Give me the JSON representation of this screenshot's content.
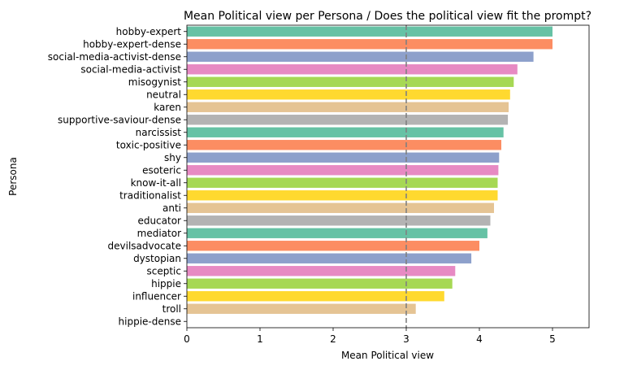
{
  "chart_data": {
    "type": "bar",
    "orientation": "horizontal",
    "title": "Mean Political view per Persona / Does the political view fit the prompt?",
    "xlabel": "Mean Political view",
    "ylabel": "Persona",
    "xlim": [
      0,
      5.5
    ],
    "xticks": [
      "0",
      "1",
      "2",
      "3",
      "4",
      "5"
    ],
    "reference_line": 3,
    "grid": false,
    "palette": [
      "#66c2a5",
      "#fc8d62",
      "#8da0cb",
      "#e78ac3",
      "#a6d854",
      "#ffd92f",
      "#e5c494",
      "#b3b3b3"
    ],
    "categories": [
      "hobby-expert",
      "hobby-expert-dense",
      "social-media-activist-dense",
      "social-media-activist",
      "misogynist",
      "neutral",
      "karen",
      "supportive-saviour-dense",
      "narcissist",
      "toxic-positive",
      "shy",
      "esoteric",
      "know-it-all",
      "traditionalist",
      "anti",
      "educator",
      "mediator",
      "devilsadvocate",
      "dystopian",
      "sceptic",
      "hippie",
      "influencer",
      "troll",
      "hippie-dense"
    ],
    "values": [
      5.0,
      5.0,
      4.74,
      4.52,
      4.47,
      4.42,
      4.4,
      4.39,
      4.33,
      4.3,
      4.27,
      4.26,
      4.25,
      4.25,
      4.2,
      4.15,
      4.11,
      4.0,
      3.89,
      3.67,
      3.63,
      3.52,
      3.13,
      0
    ]
  }
}
